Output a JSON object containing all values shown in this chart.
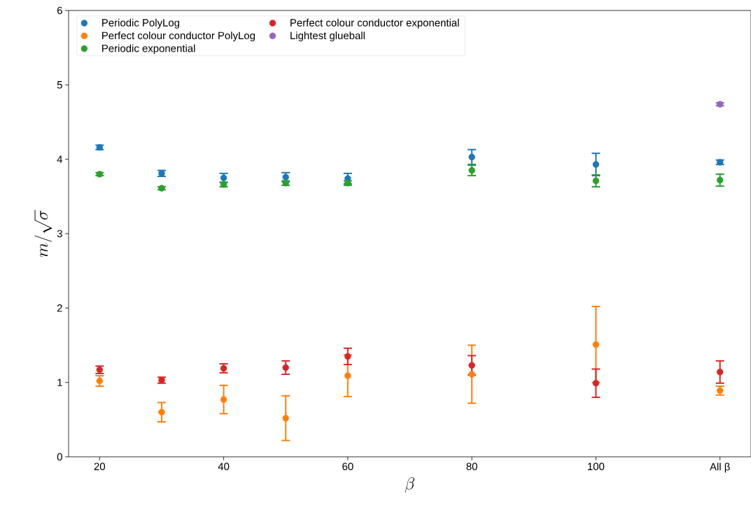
{
  "chart_data": {
    "type": "scatter",
    "xlabel": "\\beta",
    "ylabel": "m/\\sqrt{\\sigma}",
    "xlim": [
      15,
      125
    ],
    "ylim": [
      0,
      6
    ],
    "xticks": [
      20,
      40,
      60,
      80,
      100,
      {
        "value": 120,
        "label": "All β"
      }
    ],
    "yticks": [
      0,
      1,
      2,
      3,
      4,
      5,
      6
    ],
    "grid": false,
    "legend": "top",
    "marker": "circle",
    "series": [
      {
        "name": "Periodic PolyLog",
        "color": "#1f77b4",
        "x": [
          20,
          30,
          40,
          50,
          60,
          80,
          100,
          120
        ],
        "values": [
          4.16,
          3.81,
          3.75,
          3.76,
          3.74,
          4.03,
          3.93,
          3.96
        ],
        "errors": [
          0.03,
          0.04,
          0.06,
          0.06,
          0.07,
          0.1,
          0.15,
          0.03
        ]
      },
      {
        "name": "Perfect colour conductor PolyLog",
        "color": "#ff7f0e",
        "x": [
          20,
          30,
          40,
          50,
          60,
          80,
          100,
          120
        ],
        "values": [
          1.02,
          0.6,
          0.77,
          0.52,
          1.09,
          1.11,
          1.51,
          0.89
        ],
        "errors": [
          0.07,
          0.13,
          0.19,
          0.3,
          0.28,
          0.39,
          0.51,
          0.06
        ]
      },
      {
        "name": "Periodic exponential",
        "color": "#2ca02c",
        "x": [
          20,
          30,
          40,
          50,
          60,
          80,
          100,
          120
        ],
        "values": [
          3.8,
          3.61,
          3.66,
          3.68,
          3.68,
          3.85,
          3.71,
          3.72
        ],
        "errors": [
          0.02,
          0.02,
          0.03,
          0.03,
          0.03,
          0.07,
          0.08,
          0.08
        ]
      },
      {
        "name": "Perfect colour conductor exponential",
        "color": "#d62728",
        "x": [
          20,
          30,
          40,
          50,
          60,
          80,
          100,
          120
        ],
        "values": [
          1.17,
          1.03,
          1.19,
          1.2,
          1.35,
          1.23,
          0.99,
          1.14
        ],
        "errors": [
          0.05,
          0.04,
          0.06,
          0.09,
          0.11,
          0.13,
          0.19,
          0.15
        ]
      },
      {
        "name": "Lightest glueball",
        "color": "#9467bd",
        "x": [
          120
        ],
        "values": [
          4.74
        ],
        "errors": [
          0.02
        ]
      }
    ]
  }
}
